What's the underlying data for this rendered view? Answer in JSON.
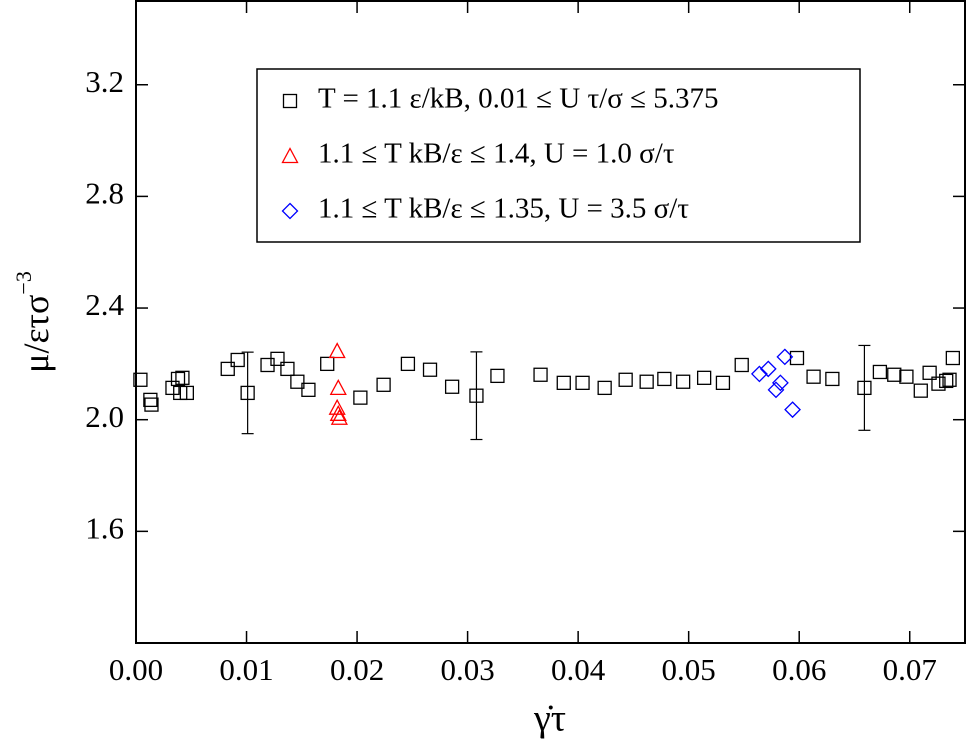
{
  "chart_data": {
    "type": "scatter",
    "x_label": "γ̇τ",
    "y_label": "μ/ετσ",
    "y_label_sup": "−3",
    "xlim": [
      0,
      0.075
    ],
    "ylim": [
      1.2,
      3.5
    ],
    "xticks": [
      {
        "value": 0,
        "label": "0.00"
      },
      0.01,
      0.02,
      0.03,
      0.04,
      0.05,
      0.06,
      0.07
    ],
    "yticks": [
      1.6,
      {
        "value": 2,
        "label": "2.0"
      },
      2.4,
      2.8,
      3.2
    ],
    "legend": "top-center",
    "series": [
      {
        "name": "T = 1.1 ε/kB, 0.01 ≤ U τ/σ ≤ 5.375",
        "color": "#000000",
        "marker": "square",
        "x": [
          0.0004,
          0.0013,
          0.0014,
          0.0033,
          0.0038,
          0.0042,
          0.004,
          0.0046,
          0.0083,
          0.0092,
          0.0101,
          0.0119,
          0.0128,
          0.0137,
          0.0146,
          0.0156,
          0.0173,
          0.0203,
          0.0224,
          0.0246,
          0.0266,
          0.0286,
          0.0308,
          0.0327,
          0.0366,
          0.0387,
          0.0404,
          0.0424,
          0.0443,
          0.0462,
          0.0478,
          0.0495,
          0.0514,
          0.0531,
          0.0548,
          0.0598,
          0.0613,
          0.063,
          0.0659,
          0.0673,
          0.0686,
          0.0697,
          0.071,
          0.0718,
          0.0726,
          0.0733,
          0.0736,
          0.0739
        ],
        "values": [
          2.143,
          2.071,
          2.054,
          2.114,
          2.146,
          2.15,
          2.096,
          2.096,
          2.182,
          2.214,
          2.096,
          2.196,
          2.218,
          2.182,
          2.136,
          2.107,
          2.2,
          2.079,
          2.125,
          2.2,
          2.179,
          2.118,
          2.086,
          2.157,
          2.161,
          2.132,
          2.132,
          2.114,
          2.143,
          2.136,
          2.146,
          2.136,
          2.15,
          2.132,
          2.196,
          2.221,
          2.154,
          2.146,
          2.114,
          2.171,
          2.161,
          2.154,
          2.104,
          2.168,
          2.129,
          2.139,
          2.143,
          2.221
        ],
        "errors": [
          null,
          null,
          null,
          null,
          null,
          null,
          null,
          null,
          null,
          null,
          0.146,
          null,
          null,
          null,
          null,
          null,
          null,
          null,
          null,
          null,
          null,
          null,
          0.157,
          null,
          null,
          null,
          null,
          null,
          null,
          null,
          null,
          null,
          null,
          null,
          null,
          null,
          null,
          null,
          0.152,
          null,
          null,
          null,
          null,
          null,
          null,
          null,
          null,
          null
        ]
      },
      {
        "name": "1.1 ≤ T kB/ε ≤ 1.4, U = 1.0 σ/τ",
        "color": "#ff0000",
        "marker": "triangle",
        "x": [
          0.0182,
          0.0183,
          0.0182,
          0.0183,
          0.0184
        ],
        "values": [
          2.246,
          2.114,
          2.043,
          2.021,
          2.007
        ]
      },
      {
        "name": "1.1 ≤ T kB/ε ≤ 1.35, U = 3.5 σ/τ",
        "color": "#0000ff",
        "marker": "diamond",
        "x": [
          0.0564,
          0.0572,
          0.0579,
          0.0583,
          0.0587,
          0.0594
        ],
        "values": [
          2.164,
          2.182,
          2.107,
          2.132,
          2.225,
          2.036
        ]
      }
    ]
  }
}
